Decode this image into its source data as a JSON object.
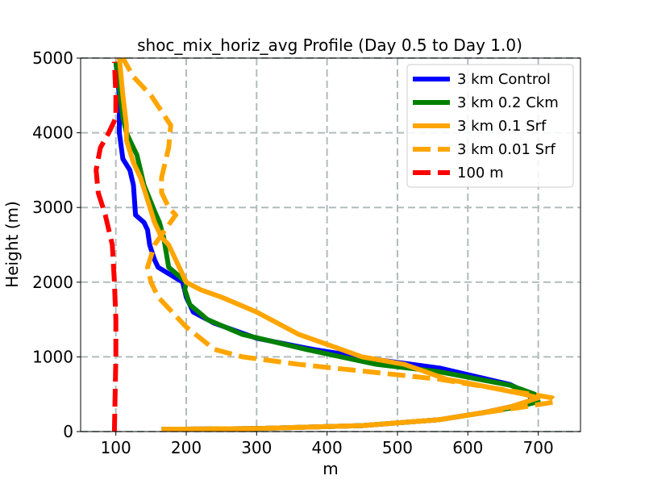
{
  "chart_data": {
    "type": "line",
    "title": "shoc_mix_horiz_avg Profile (Day 0.5 to Day 1.0)",
    "xlabel": "m",
    "ylabel": "Height (m)",
    "xlim": [
      50,
      760
    ],
    "ylim": [
      0,
      5000
    ],
    "xticks": [
      100,
      200,
      300,
      400,
      500,
      600,
      700
    ],
    "yticks": [
      0,
      1000,
      2000,
      3000,
      4000,
      5000
    ],
    "grid": true,
    "legend_position": "top-right",
    "series": [
      {
        "name": "3 km Control",
        "color": "#0000ff",
        "dash": "solid",
        "x": [
          165,
          300,
          450,
          560,
          620,
          660,
          690,
          688,
          660,
          560,
          480,
          380,
          300,
          240,
          210,
          200,
          195,
          160,
          155,
          148,
          145,
          140,
          128,
          125,
          120,
          110,
          105,
          105,
          100
        ],
        "y": [
          30,
          40,
          80,
          160,
          250,
          330,
          390,
          500,
          630,
          850,
          950,
          1100,
          1250,
          1450,
          1600,
          1800,
          2000,
          2200,
          2300,
          2500,
          2700,
          2800,
          2900,
          3300,
          3500,
          3650,
          4000,
          4500,
          4950
        ]
      },
      {
        "name": "3 km 0.2 Ckm",
        "color": "#008000",
        "dash": "solid",
        "x": [
          165,
          300,
          450,
          560,
          620,
          670,
          700,
          695,
          660,
          560,
          470,
          370,
          280,
          230,
          205,
          198,
          200,
          175,
          168,
          162,
          155,
          140,
          130,
          120,
          115,
          110,
          105,
          100
        ],
        "y": [
          30,
          40,
          80,
          160,
          250,
          330,
          400,
          500,
          620,
          800,
          900,
          1100,
          1300,
          1500,
          1700,
          1900,
          2000,
          2200,
          2600,
          2800,
          2950,
          3300,
          3700,
          3900,
          4000,
          4200,
          4600,
          4950
        ]
      },
      {
        "name": "3 km 0.1 Srf",
        "color": "#ffa500",
        "dash": "solid",
        "x": [
          165,
          300,
          450,
          560,
          620,
          660,
          700,
          680,
          600,
          570,
          540,
          510,
          450,
          360,
          300,
          250,
          220,
          200,
          185,
          175,
          165,
          155,
          145,
          135,
          125,
          115,
          115,
          110,
          105
        ],
        "y": [
          30,
          40,
          80,
          160,
          250,
          330,
          450,
          500,
          650,
          700,
          800,
          900,
          1000,
          1300,
          1600,
          1800,
          1900,
          2000,
          2300,
          2500,
          2600,
          2800,
          3100,
          3400,
          3600,
          3900,
          4100,
          4500,
          5000
        ]
      },
      {
        "name": "3 km 0.01 Srf",
        "color": "#ffa500",
        "dash": "dashed",
        "x": [
          165,
          300,
          450,
          560,
          620,
          680,
          725,
          720,
          690,
          560,
          460,
          360,
          280,
          240,
          200,
          180,
          160,
          150,
          145,
          155,
          170,
          185,
          175,
          165,
          165,
          175,
          178,
          150,
          125,
          110
        ],
        "y": [
          30,
          40,
          80,
          160,
          250,
          330,
          400,
          450,
          500,
          700,
          800,
          900,
          1000,
          1100,
          1400,
          1600,
          1800,
          2000,
          2200,
          2500,
          2700,
          2900,
          3000,
          3200,
          3400,
          3800,
          4100,
          4500,
          4750,
          5000
        ]
      },
      {
        "name": "100 m",
        "color": "#ff0000",
        "dash": "dashed",
        "x": [
          98,
          99,
          100,
          100,
          98,
          95,
          85,
          75,
          72,
          78,
          90,
          100,
          100,
          98
        ],
        "y": [
          0,
          500,
          1000,
          1500,
          2000,
          2500,
          2900,
          3200,
          3500,
          3800,
          4000,
          4200,
          4500,
          4950
        ]
      }
    ]
  }
}
